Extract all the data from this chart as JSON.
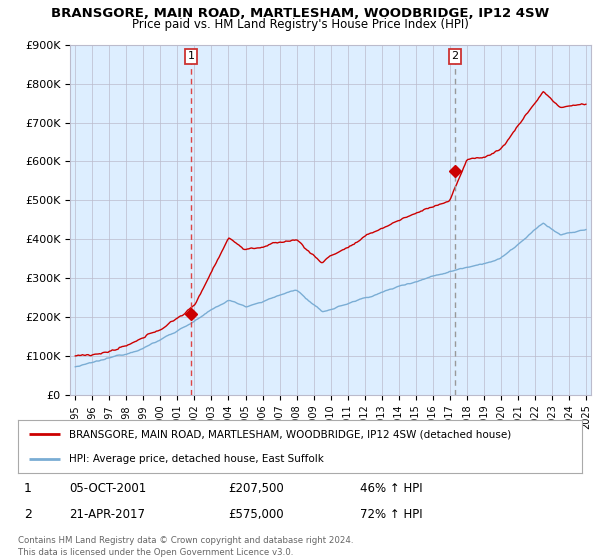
{
  "title": "BRANSGORE, MAIN ROAD, MARTLESHAM, WOODBRIDGE, IP12 4SW",
  "subtitle": "Price paid vs. HM Land Registry's House Price Index (HPI)",
  "legend_line1": "BRANSGORE, MAIN ROAD, MARTLESHAM, WOODBRIDGE, IP12 4SW (detached house)",
  "legend_line2": "HPI: Average price, detached house, East Suffolk",
  "transaction1_label": "1",
  "transaction1_date": "05-OCT-2001",
  "transaction1_price": "£207,500",
  "transaction1_hpi": "46% ↑ HPI",
  "transaction2_label": "2",
  "transaction2_date": "21-APR-2017",
  "transaction2_price": "£575,000",
  "transaction2_hpi": "72% ↑ HPI",
  "footer1": "Contains HM Land Registry data © Crown copyright and database right 2024.",
  "footer2": "This data is licensed under the Open Government Licence v3.0.",
  "red_color": "#cc0000",
  "blue_color": "#7aadd4",
  "vline1_color": "#dd4444",
  "vline2_color": "#999999",
  "bg_color": "#ddeeff",
  "grid_color": "#bbbbcc",
  "ylim": [
    0,
    900000
  ],
  "yticks": [
    0,
    100000,
    200000,
    300000,
    400000,
    500000,
    600000,
    700000,
    800000,
    900000
  ],
  "ytick_labels": [
    "£0",
    "£100K",
    "£200K",
    "£300K",
    "£400K",
    "£500K",
    "£600K",
    "£700K",
    "£800K",
    "£900K"
  ],
  "year_start": 1995,
  "year_end": 2025,
  "transaction1_year": 2001.8,
  "transaction2_year": 2017.3,
  "transaction1_value": 207500,
  "transaction2_value": 575000
}
